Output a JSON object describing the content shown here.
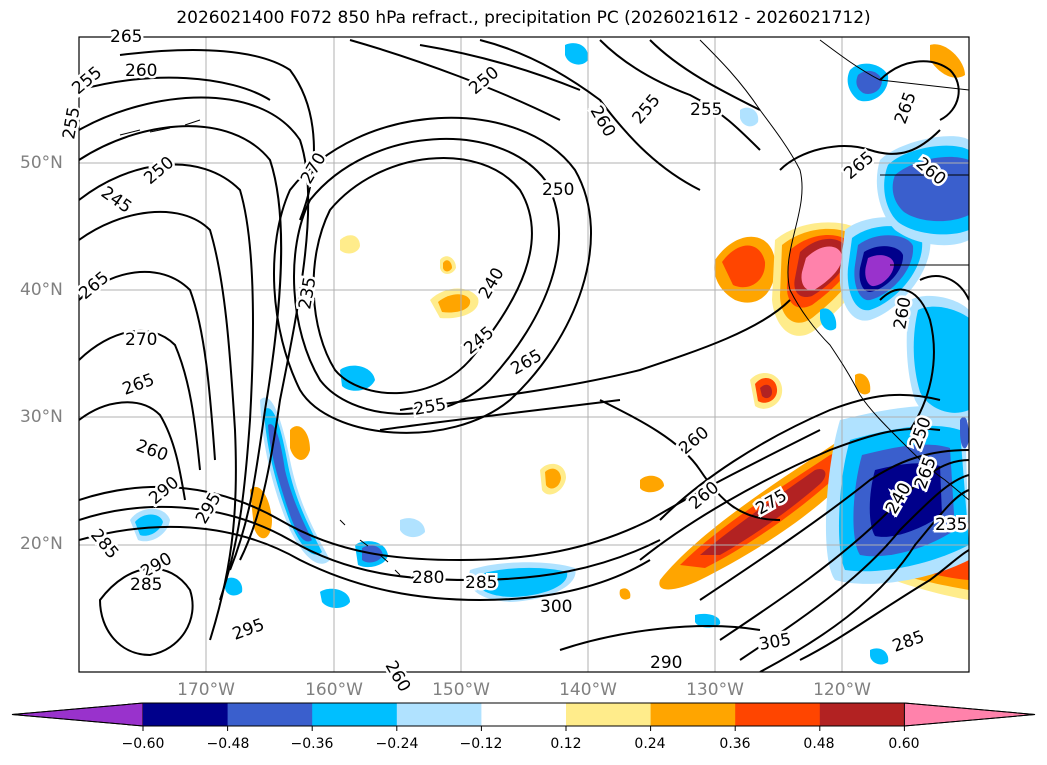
{
  "title": "2026021400 F072 850 hPa refract., precipitation PC (2026021612 - 2026021712)",
  "map": {
    "lat_labels": [
      "50°N",
      "40°N",
      "30°N",
      "20°N"
    ],
    "lon_labels": [
      "170°W",
      "160°W",
      "150°W",
      "140°W",
      "130°W",
      "120°W"
    ],
    "contour_labels": [
      "265",
      "260",
      "255",
      "255",
      "245",
      "250",
      "270",
      "235",
      "240",
      "245",
      "250",
      "250",
      "255",
      "260",
      "255",
      "265",
      "265",
      "270",
      "265",
      "260",
      "290",
      "295",
      "285",
      "290",
      "285",
      "295",
      "255",
      "265",
      "260",
      "275",
      "260",
      "265",
      "260",
      "260",
      "280",
      "285",
      "300",
      "290",
      "305",
      "285",
      "240",
      "235",
      "250",
      "265",
      "260"
    ],
    "coastline_color": "#000000",
    "grid_color": "#b0b0b0"
  },
  "colorbar": {
    "ticks": [
      "−0.60",
      "−0.48",
      "−0.36",
      "−0.24",
      "−0.12",
      "0.12",
      "0.24",
      "0.36",
      "0.48",
      "0.60"
    ],
    "colors": [
      "#9932cc",
      "#00008b",
      "#3a5fcd",
      "#00bfff",
      "#b0e2ff",
      "#ffffff",
      "#ffec8b",
      "#ffa500",
      "#ff4500",
      "#b22222",
      "#ff82ab"
    ]
  }
}
